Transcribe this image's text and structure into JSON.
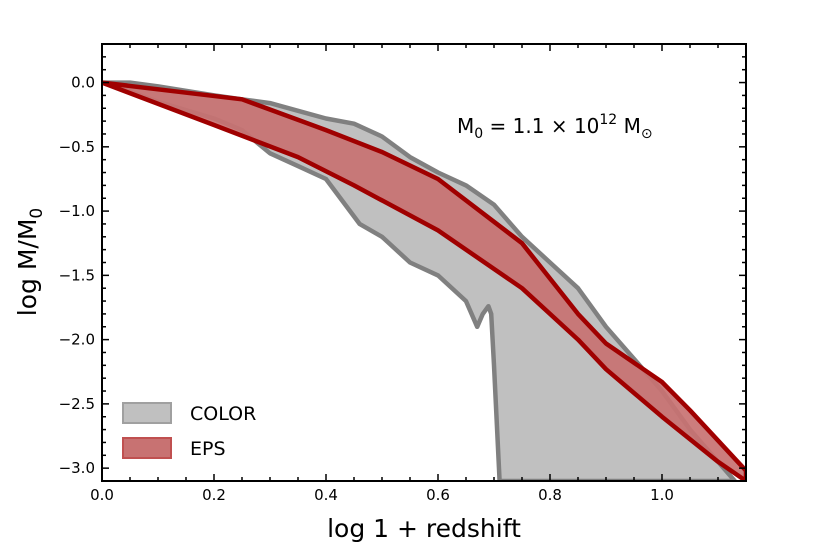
{
  "chart_data": {
    "type": "area",
    "xlabel": "log  1 + redshift",
    "ylabel": "log  M/M",
    "ylabel_sub": "0",
    "xlim": [
      0.0,
      1.15
    ],
    "ylim": [
      -3.1,
      0.3
    ],
    "xticks": [
      0.0,
      0.2,
      0.4,
      0.6,
      0.8,
      1.0
    ],
    "xtick_labels": [
      "0.0",
      "0.2",
      "0.4",
      "0.6",
      "0.8",
      "1.0"
    ],
    "yticks": [
      0.0,
      -0.5,
      -1.0,
      -1.5,
      -2.0,
      -2.5,
      -3.0
    ],
    "ytick_labels": [
      "0.0",
      "−0.5",
      "−1.0",
      "−1.5",
      "−2.0",
      "−2.5",
      "−3.0"
    ],
    "annotation": {
      "prefix": "M",
      "prefix_sub": "0",
      "middle": " = 1.1 × 10",
      "exponent": "12",
      "suffix": " M",
      "suffix_sub": "⊙"
    },
    "series": [
      {
        "name": "COLOR",
        "fill": "#c0c0c0",
        "edge": "#808080",
        "polygon": [
          [
            0.0,
            0.0
          ],
          [
            0.05,
            0.0
          ],
          [
            0.1,
            -0.03
          ],
          [
            0.2,
            -0.1
          ],
          [
            0.25,
            -0.13
          ],
          [
            0.3,
            -0.16
          ],
          [
            0.35,
            -0.22
          ],
          [
            0.4,
            -0.28
          ],
          [
            0.45,
            -0.32
          ],
          [
            0.5,
            -0.42
          ],
          [
            0.55,
            -0.58
          ],
          [
            0.6,
            -0.7
          ],
          [
            0.65,
            -0.8
          ],
          [
            0.7,
            -0.95
          ],
          [
            0.75,
            -1.2
          ],
          [
            0.8,
            -1.4
          ],
          [
            0.85,
            -1.6
          ],
          [
            0.9,
            -1.9
          ],
          [
            0.95,
            -2.15
          ],
          [
            1.0,
            -2.4
          ],
          [
            1.05,
            -2.7
          ],
          [
            1.1,
            -2.95
          ],
          [
            1.13,
            -3.1
          ],
          [
            0.71,
            -3.1
          ],
          [
            0.7,
            -2.2
          ],
          [
            0.695,
            -1.8
          ],
          [
            0.69,
            -1.74
          ],
          [
            0.68,
            -1.8
          ],
          [
            0.67,
            -1.9
          ],
          [
            0.65,
            -1.7
          ],
          [
            0.6,
            -1.5
          ],
          [
            0.55,
            -1.4
          ],
          [
            0.5,
            -1.2
          ],
          [
            0.46,
            -1.1
          ],
          [
            0.4,
            -0.75
          ],
          [
            0.35,
            -0.65
          ],
          [
            0.3,
            -0.55
          ],
          [
            0.25,
            -0.37
          ],
          [
            0.2,
            -0.28
          ],
          [
            0.1,
            -0.15
          ],
          [
            0.05,
            -0.07
          ],
          [
            0.0,
            0.0
          ]
        ]
      },
      {
        "name": "EPS",
        "fill": "#c87272",
        "edge": "#a00000",
        "upper": [
          [
            0.0,
            0.0
          ],
          [
            0.25,
            -0.13
          ],
          [
            0.4,
            -0.37
          ],
          [
            0.5,
            -0.54
          ],
          [
            0.6,
            -0.75
          ],
          [
            0.75,
            -1.25
          ],
          [
            0.85,
            -1.8
          ],
          [
            0.9,
            -2.03
          ],
          [
            1.0,
            -2.33
          ],
          [
            1.05,
            -2.55
          ],
          [
            1.15,
            -3.02
          ]
        ],
        "lower": [
          [
            1.15,
            -3.1
          ],
          [
            1.1,
            -2.95
          ],
          [
            1.0,
            -2.6
          ],
          [
            0.9,
            -2.23
          ],
          [
            0.85,
            -2.0
          ],
          [
            0.75,
            -1.6
          ],
          [
            0.6,
            -1.15
          ],
          [
            0.45,
            -0.8
          ],
          [
            0.35,
            -0.58
          ],
          [
            0.2,
            -0.33
          ],
          [
            0.0,
            0.0
          ]
        ]
      }
    ],
    "legend": {
      "position": "lower-left",
      "entries": [
        {
          "label": "COLOR",
          "fill": "#c0c0c0",
          "edge": "#a0a0a0"
        },
        {
          "label": "EPS",
          "fill": "#c87272",
          "edge": "#c05050"
        }
      ]
    }
  }
}
